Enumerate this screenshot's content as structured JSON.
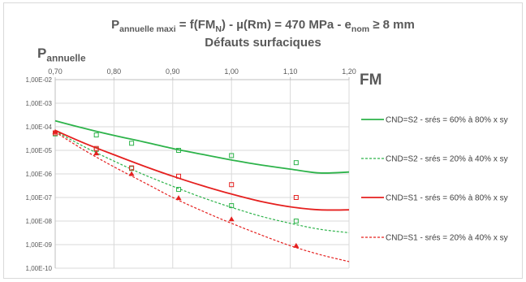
{
  "title": {
    "p": "P",
    "p_sub": "annuelle maxi",
    "mid": " = f(FM",
    "n_sub": "N",
    "after": ")  - µ(Rm) = 470 MPa - e",
    "nom_sub": "nom",
    "end": " ≥ 8 mm"
  },
  "subtitle": "Défauts surfaciques",
  "y_label": {
    "main": "P",
    "sub": "annuelle"
  },
  "x_label": "FM",
  "chart_data": {
    "type": "line",
    "xlim": [
      0.7,
      1.2
    ],
    "x_ticks": [
      0.7,
      0.8,
      0.9,
      1.0,
      1.1,
      1.2
    ],
    "x_tick_labels": [
      "0,70",
      "0,80",
      "0,90",
      "1,00",
      "1,10",
      "1,20"
    ],
    "x_axis_position": "top",
    "y_scale": "log",
    "ylim": [
      1e-10,
      0.01
    ],
    "y_ticks": [
      0.01,
      0.001,
      0.0001,
      1e-05,
      1e-06,
      1e-07,
      1e-08,
      1e-09,
      1e-10
    ],
    "y_tick_labels": [
      "1,00E-02",
      "1,00E-03",
      "1,00E-04",
      "1,00E-05",
      "1,00E-06",
      "1,00E-07",
      "1,00E-08",
      "1,00E-09",
      "1,00E-10"
    ],
    "grid": true,
    "legend_position": "right",
    "series": [
      {
        "name": "CND=S2 - srés = 60% à 80% x sy",
        "color": "#2db34a",
        "dash": "solid",
        "marker": "square-open",
        "curve_x": [
          0.7,
          0.75,
          0.8,
          0.85,
          0.9,
          0.95,
          1.0,
          1.05,
          1.1,
          1.15,
          1.2
        ],
        "curve_y": [
          0.00018,
          8.5e-05,
          4.3e-05,
          2.3e-05,
          1.2e-05,
          6.8e-06,
          3.9e-06,
          2.4e-06,
          1.6e-06,
          1.1e-06,
          1.2e-06
        ],
        "points_x": [
          0.77,
          0.83,
          0.91,
          1.0,
          1.11
        ],
        "points_y": [
          4.5e-05,
          2e-05,
          1e-05,
          6e-06,
          3e-06
        ]
      },
      {
        "name": "CND=S2 - srés = 20% à 40% x sy",
        "color": "#2db34a",
        "dash": "dashed",
        "marker": "square-open",
        "curve_x": [
          0.7,
          0.75,
          0.8,
          0.85,
          0.9,
          0.95,
          1.0,
          1.05,
          1.1,
          1.15,
          1.2
        ],
        "curve_y": [
          6.5e-05,
          1.4e-05,
          3.5e-06,
          9.5e-07,
          3e-07,
          1e-07,
          3.8e-08,
          1.6e-08,
          8e-09,
          4.5e-09,
          3.2e-09
        ],
        "points_x": [
          0.7,
          0.77,
          0.83,
          0.91,
          1.0,
          1.11
        ],
        "points_y": [
          5e-05,
          1.1e-05,
          1.7e-06,
          2.2e-07,
          4.5e-08,
          1e-08
        ]
      },
      {
        "name": "CND=S1 - srés = 60% à 80% x sy",
        "color": "#e5201f",
        "dash": "solid",
        "marker": "square-open",
        "curve_x": [
          0.7,
          0.75,
          0.8,
          0.85,
          0.9,
          0.95,
          1.0,
          1.05,
          1.1,
          1.15,
          1.2
        ],
        "curve_y": [
          7e-05,
          2e-05,
          6.5e-06,
          2.2e-06,
          8e-07,
          3.2e-07,
          1.4e-07,
          6.8e-08,
          4e-08,
          3e-08,
          3e-08
        ],
        "points_x": [
          0.7,
          0.77,
          0.83,
          0.91,
          1.0,
          1.11
        ],
        "points_y": [
          5.5e-05,
          1.2e-05,
          1.8e-06,
          8e-07,
          3.5e-07,
          1e-07
        ]
      },
      {
        "name": "CND=S1 - srés = 20% à 40% x sy",
        "color": "#e5201f",
        "dash": "dashed",
        "marker": "triangle-filled",
        "curve_x": [
          0.7,
          0.75,
          0.8,
          0.85,
          0.9,
          0.95,
          1.0,
          1.05,
          1.1,
          1.15,
          1.2
        ],
        "curve_y": [
          6e-05,
          1e-05,
          2e-06,
          4.5e-07,
          1e-07,
          2.7e-08,
          8e-09,
          2.6e-09,
          9e-10,
          3.8e-10,
          1.9e-10
        ],
        "points_x": [
          0.7,
          0.77,
          0.83,
          0.91,
          1.0,
          1.11
        ],
        "points_y": [
          6e-05,
          7.5e-06,
          1e-06,
          9.5e-08,
          1.2e-08,
          9e-10
        ]
      }
    ]
  }
}
